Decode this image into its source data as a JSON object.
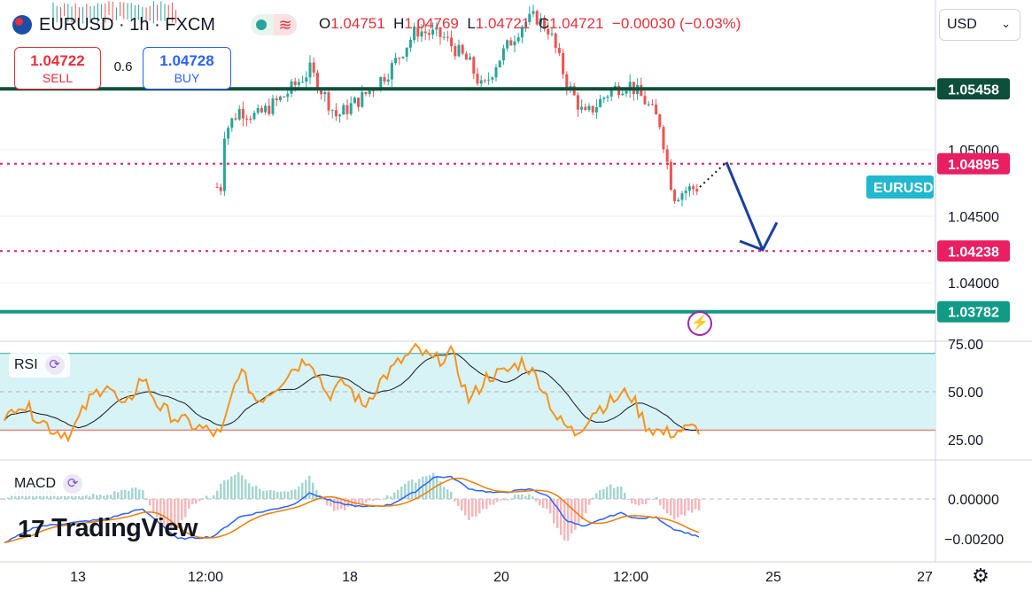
{
  "header": {
    "symbol": "EURUSD",
    "separator1": "·",
    "interval": "1h",
    "separator2": "·",
    "exchange": "FXCM",
    "ohlc": {
      "open_label": "O",
      "open": "1.04751",
      "high_label": "H",
      "high": "1.04769",
      "low_label": "L",
      "low": "1.04721",
      "close_label": "C",
      "close": "1.04721",
      "change": "−0.00030 (−0.03%)"
    },
    "pink_icon": "≋"
  },
  "trade": {
    "sell_price": "1.04722",
    "sell_label": "SELL",
    "spread": "0.6",
    "buy_price": "1.04728",
    "buy_label": "BUY"
  },
  "currency_select": {
    "value": "USD",
    "chevron": "⌄"
  },
  "price_axis": {
    "ticks": [
      "1.05000",
      "1.04500",
      "1.04000"
    ],
    "labels": [
      {
        "text": "1.05458",
        "price": 1.05458,
        "color": "#0e4f3b"
      },
      {
        "text": "1.04895",
        "price": 1.04895,
        "color": "#e91e63"
      },
      {
        "text": "1.04238",
        "price": 1.04238,
        "color": "#e91e63"
      },
      {
        "text": "1.03782",
        "price": 1.03782,
        "color": "#119a86"
      }
    ],
    "symbol_tag": "EURUSD"
  },
  "rsi": {
    "label": "RSI",
    "ticks": [
      "75.00",
      "50.00",
      "25.00"
    ]
  },
  "macd": {
    "label": "MACD",
    "ticks": [
      "0.00000",
      "−0.00200"
    ]
  },
  "time_axis": [
    "13",
    "12:00",
    "18",
    "20",
    "12:00",
    "25",
    "27"
  ],
  "branding": {
    "logo_mark": "17",
    "logo_text": "TradingView"
  },
  "icons": {
    "cycle": "cycle-icon",
    "lightning": "lightning-icon",
    "settings": "settings-icon"
  },
  "glyphs": {
    "cycle": "⟳",
    "lightning": "⚡",
    "settings": "⚙"
  },
  "colors": {
    "up": "#26a69a",
    "down": "#ef5350",
    "rsi_line": "#f7931e",
    "macd_line": "#2962ff",
    "signal_line": "#f57c00",
    "resistance": "#0e4f3b",
    "support": "#119a86",
    "dotted_level": "#e91e63",
    "arrow": "#1a3fa0",
    "rsi_band": "#d8f3f6"
  }
}
